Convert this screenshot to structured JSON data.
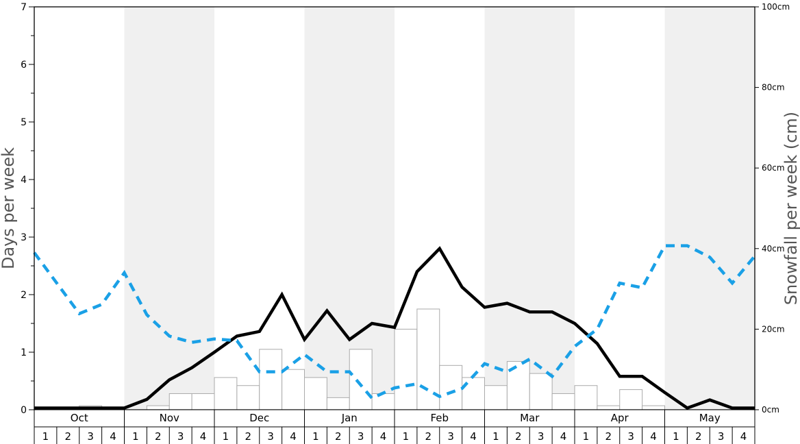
{
  "chart_data": {
    "type": "bar+line",
    "title": "",
    "ylabel_left": "Days per week",
    "ylabel_right": "Snowfall per week (cm)",
    "ylim_left": [
      0,
      7
    ],
    "ylim_right": [
      0,
      100
    ],
    "left_ticks": [
      "0",
      "1",
      "2",
      "3",
      "4",
      "5",
      "6",
      "7"
    ],
    "right_ticks": [
      "0cm",
      "20cm",
      "40cm",
      "60cm",
      "80cm",
      "100cm"
    ],
    "right_tick_values": [
      0,
      20,
      40,
      60,
      80,
      100
    ],
    "months": [
      "Oct",
      "Nov",
      "Dec",
      "Jan",
      "Feb",
      "Mar",
      "Apr",
      "May"
    ],
    "week_labels": [
      "1",
      "2",
      "3",
      "4"
    ],
    "shaded_months": [
      false,
      true,
      false,
      true,
      false,
      true,
      false,
      true
    ],
    "colors": {
      "bars_fill": "#ffffff",
      "bars_stroke": "#aaaaaa",
      "black_line": "#000000",
      "blue_line": "#1aa0e6",
      "shade": "#f0f0f0"
    },
    "series": [
      {
        "kind": "bar",
        "axis": "right",
        "values": [
          0,
          0,
          1,
          0,
          0,
          1,
          4,
          4,
          8,
          6,
          15,
          10,
          8,
          3,
          15,
          4,
          20,
          25,
          11,
          8,
          6,
          12,
          9,
          4,
          6,
          1,
          5,
          1,
          0,
          0,
          0,
          0
        ]
      },
      {
        "kind": "line",
        "axis": "left",
        "style": "solid",
        "x_index": [
          0,
          1,
          2,
          3,
          4,
          5,
          6,
          7,
          8,
          9,
          10,
          11,
          12,
          13,
          14,
          15,
          16,
          17,
          18,
          19,
          20,
          21,
          22,
          23,
          24,
          25,
          26,
          27,
          28,
          29,
          30,
          31,
          32
        ],
        "values": [
          0.03,
          0.03,
          0.03,
          0.03,
          0.03,
          0.18,
          0.52,
          0.73,
          1.0,
          1.28,
          1.36,
          2.0,
          1.22,
          1.72,
          1.22,
          1.5,
          1.43,
          2.4,
          2.8,
          2.13,
          1.78,
          1.85,
          1.7,
          1.7,
          1.5,
          1.15,
          0.58,
          0.58,
          0.3,
          0.03,
          0.17,
          0.03,
          0.03
        ]
      },
      {
        "kind": "line",
        "axis": "left",
        "style": "dashed",
        "x_index": [
          0,
          1,
          2,
          3,
          4,
          5,
          6,
          7,
          8,
          9,
          10,
          11,
          12,
          13,
          14,
          15,
          16,
          17,
          18,
          19,
          20,
          21,
          22,
          23,
          24,
          25,
          26,
          27,
          28,
          29,
          30,
          31,
          32
        ],
        "values": [
          2.73,
          2.2,
          1.67,
          1.83,
          2.38,
          1.65,
          1.28,
          1.17,
          1.23,
          1.2,
          0.66,
          0.66,
          0.96,
          0.66,
          0.66,
          0.2,
          0.38,
          0.45,
          0.23,
          0.37,
          0.8,
          0.66,
          0.88,
          0.58,
          1.1,
          1.4,
          2.2,
          2.12,
          2.85,
          2.85,
          2.65,
          2.2,
          2.67
        ]
      }
    ]
  }
}
